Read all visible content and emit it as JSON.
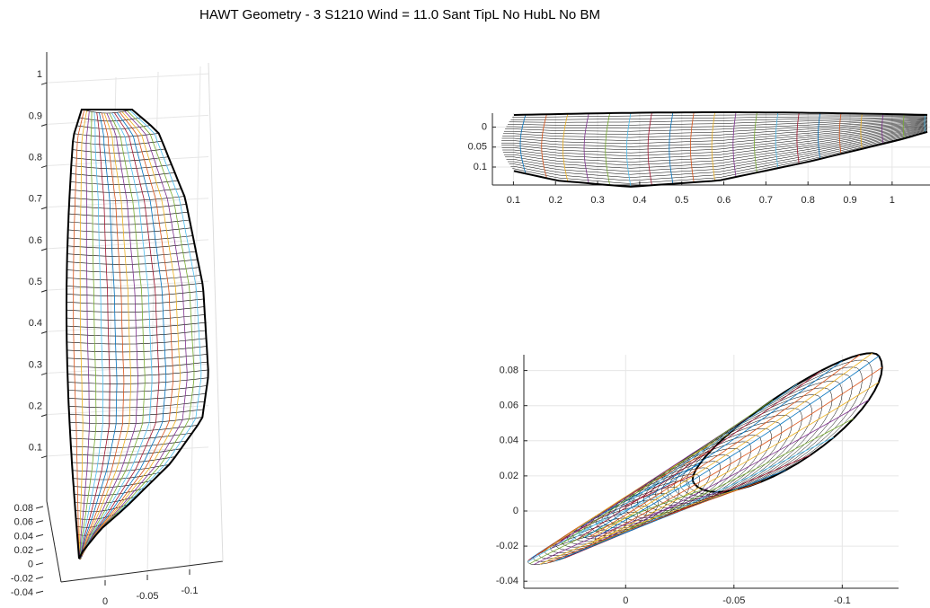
{
  "chart_data": [
    {
      "type": "surface3d",
      "title": "HAWT Geometry - 3 S1210 Wind = 11.0 Sant TipL No HubL No BM",
      "zlim": [
        0,
        1.1
      ],
      "zticks": [
        0.1,
        0.2,
        0.3,
        0.4,
        0.5,
        0.6,
        0.7,
        0.8,
        0.9,
        1
      ],
      "ylim": [
        -0.045,
        0.09
      ],
      "yticks": [
        0.08,
        0.06,
        0.04,
        0.02,
        0,
        -0.02,
        -0.04
      ],
      "xlim": [
        0.01,
        -0.13
      ],
      "xticks": [
        0,
        -0.05,
        -0.1
      ],
      "grid": true,
      "line_colors": [
        "#0072BD",
        "#D95319",
        "#EDB120",
        "#7E2F8E",
        "#77AC30",
        "#4DBEEE",
        "#A2142F"
      ]
    },
    {
      "type": "planform",
      "xlim": [
        0.05,
        1.09
      ],
      "xticks": [
        0.1,
        0.2,
        0.3,
        0.4,
        0.5,
        0.6,
        0.7,
        0.8,
        0.9,
        1
      ],
      "ylim": [
        -0.035,
        0.145
      ],
      "yticks": [
        0,
        0.05,
        0.1
      ],
      "y_reversed": true,
      "grid": true,
      "line_colors": [
        "#0072BD",
        "#D95319",
        "#EDB120",
        "#7E2F8E",
        "#77AC30",
        "#4DBEEE",
        "#A2142F"
      ]
    },
    {
      "type": "sections",
      "xlim": [
        0.047,
        -0.126
      ],
      "xticks": [
        0,
        -0.05,
        -0.1
      ],
      "ylim": [
        -0.044,
        0.089
      ],
      "yticks": [
        0.08,
        0.06,
        0.04,
        0.02,
        0,
        -0.02,
        -0.04
      ],
      "grid": true,
      "line_colors": [
        "#0072BD",
        "#D95319",
        "#EDB120",
        "#7E2F8E",
        "#77AC30",
        "#4DBEEE",
        "#A2142F"
      ]
    }
  ]
}
